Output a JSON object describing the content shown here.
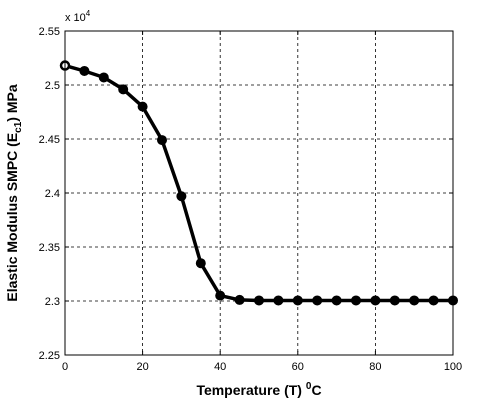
{
  "chart_data": {
    "type": "line",
    "xlabel": "Temperature (T) ",
    "xlabel_super": "0",
    "xlabel_suffix": "C",
    "ylabel": "Elastic Modulus SMPC (E",
    "ylabel_sub": "c1",
    "ylabel_suffix": ") MPa",
    "y_multiplier": "x 10",
    "y_multiplier_exp": "4",
    "xlim": [
      0,
      100
    ],
    "ylim": [
      22500,
      25500
    ],
    "x_ticks": [
      0,
      20,
      40,
      60,
      80,
      100
    ],
    "x_tick_labels": [
      "0",
      "20",
      "40",
      "60",
      "80",
      "100"
    ],
    "y_ticks": [
      22500,
      23000,
      23500,
      24000,
      24500,
      25000,
      25500
    ],
    "y_tick_labels": [
      "2.25",
      "2.3",
      "2.35",
      "2.4",
      "2.45",
      "2.5",
      "2.55"
    ],
    "grid": true,
    "grid_style": "dashed",
    "x_values": [
      0,
      5,
      10,
      15,
      20,
      25,
      30,
      35,
      40,
      45,
      50,
      55,
      60,
      65,
      70,
      75,
      80,
      85,
      90,
      95,
      100
    ],
    "series": [
      {
        "values": [
          25180,
          25130,
          25070,
          24960,
          24800,
          24490,
          23970,
          23350,
          23050,
          23010,
          23005,
          23005,
          23005,
          23005,
          23005,
          23005,
          23005,
          23005,
          23005,
          23005,
          23005
        ],
        "color": "#000000",
        "marker": "filled-circle",
        "first_marker": "open-circle"
      }
    ]
  }
}
